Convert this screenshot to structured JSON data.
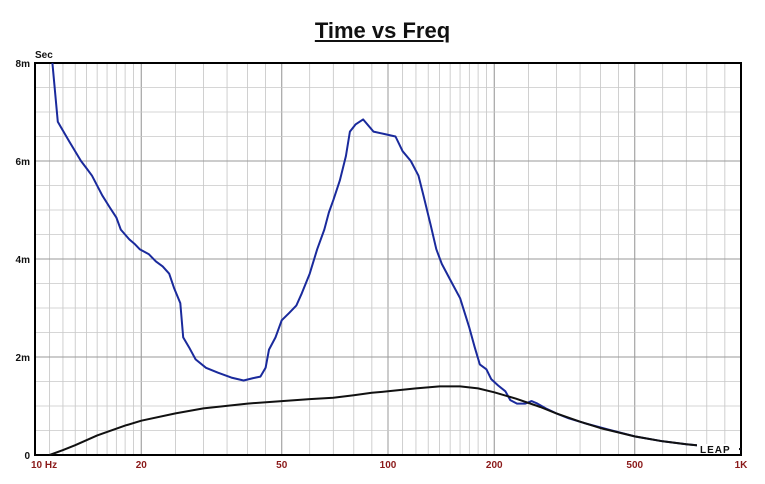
{
  "chart_data": {
    "type": "line",
    "title": "Time vs Freq",
    "y_unit_label": "Sec",
    "x_scale": "log",
    "xlim": [
      10,
      1000
    ],
    "ylim": [
      0,
      8
    ],
    "grid": true,
    "x_ticks": [
      {
        "value": 10,
        "label": "10 Hz"
      },
      {
        "value": 20,
        "label": "20"
      },
      {
        "value": 50,
        "label": "50"
      },
      {
        "value": 100,
        "label": "100"
      },
      {
        "value": 200,
        "label": "200"
      },
      {
        "value": 500,
        "label": "500"
      },
      {
        "value": 1000,
        "label": "1K"
      }
    ],
    "y_ticks": [
      {
        "value": 0,
        "label": "0"
      },
      {
        "value": 2,
        "label": "2m"
      },
      {
        "value": 4,
        "label": "4m"
      },
      {
        "value": 6,
        "label": "6m"
      },
      {
        "value": 8,
        "label": "8m"
      }
    ],
    "series": [
      {
        "color": "#1a2a9c",
        "points": [
          [
            11.2,
            8.0
          ],
          [
            11.6,
            6.8
          ],
          [
            12.5,
            6.4
          ],
          [
            13.5,
            6.0
          ],
          [
            14.0,
            5.85
          ],
          [
            14.5,
            5.7
          ],
          [
            15.5,
            5.3
          ],
          [
            16.3,
            5.05
          ],
          [
            17.0,
            4.85
          ],
          [
            17.5,
            4.6
          ],
          [
            18.5,
            4.4
          ],
          [
            19.2,
            4.3
          ],
          [
            19.8,
            4.2
          ],
          [
            21.0,
            4.1
          ],
          [
            22.0,
            3.95
          ],
          [
            23.0,
            3.85
          ],
          [
            24.0,
            3.7
          ],
          [
            24.8,
            3.4
          ],
          [
            25.8,
            3.1
          ],
          [
            26.3,
            2.4
          ],
          [
            27.3,
            2.2
          ],
          [
            28.5,
            1.95
          ],
          [
            30.5,
            1.78
          ],
          [
            33.0,
            1.68
          ],
          [
            36.0,
            1.58
          ],
          [
            39.0,
            1.52
          ],
          [
            41.5,
            1.57
          ],
          [
            43.5,
            1.6
          ],
          [
            45.0,
            1.78
          ],
          [
            46.0,
            2.15
          ],
          [
            48.0,
            2.4
          ],
          [
            50.0,
            2.75
          ],
          [
            52.5,
            2.9
          ],
          [
            55.0,
            3.05
          ],
          [
            57.0,
            3.3
          ],
          [
            60.0,
            3.7
          ],
          [
            63.0,
            4.2
          ],
          [
            66.0,
            4.6
          ],
          [
            68.0,
            4.95
          ],
          [
            70.0,
            5.2
          ],
          [
            73.0,
            5.6
          ],
          [
            76.0,
            6.1
          ],
          [
            78.0,
            6.6
          ],
          [
            81.0,
            6.75
          ],
          [
            85.0,
            6.85
          ],
          [
            91.0,
            6.6
          ],
          [
            98.0,
            6.55
          ],
          [
            105.0,
            6.5
          ],
          [
            110.0,
            6.2
          ],
          [
            116.0,
            6.0
          ],
          [
            122.0,
            5.7
          ],
          [
            126.0,
            5.3
          ],
          [
            132.0,
            4.7
          ],
          [
            137.0,
            4.2
          ],
          [
            142.0,
            3.9
          ],
          [
            152.0,
            3.5
          ],
          [
            160.0,
            3.2
          ],
          [
            170.0,
            2.6
          ],
          [
            176.0,
            2.2
          ],
          [
            182.0,
            1.85
          ],
          [
            190.0,
            1.75
          ],
          [
            196.0,
            1.55
          ],
          [
            205.0,
            1.42
          ],
          [
            215.0,
            1.3
          ],
          [
            222.0,
            1.12
          ],
          [
            232.0,
            1.05
          ],
          [
            245.0,
            1.05
          ],
          [
            255.0,
            1.1
          ],
          [
            265.0,
            1.05
          ],
          [
            280.0,
            0.95
          ],
          [
            300.0,
            0.85
          ],
          [
            325.0,
            0.75
          ],
          [
            360.0,
            0.65
          ],
          [
            420.0,
            0.52
          ],
          [
            500.0,
            0.38
          ],
          [
            600.0,
            0.28
          ],
          [
            700.0,
            0.22
          ],
          [
            800.0,
            0.18
          ],
          [
            900.0,
            0.14
          ],
          [
            1000.0,
            0.12
          ]
        ]
      },
      {
        "color": "#111111",
        "points": [
          [
            11.0,
            0.0
          ],
          [
            12.0,
            0.1
          ],
          [
            13.0,
            0.2
          ],
          [
            15.0,
            0.4
          ],
          [
            18.0,
            0.6
          ],
          [
            20.0,
            0.7
          ],
          [
            25.0,
            0.85
          ],
          [
            30.0,
            0.95
          ],
          [
            40.0,
            1.05
          ],
          [
            50.0,
            1.1
          ],
          [
            60.0,
            1.14
          ],
          [
            70.0,
            1.17
          ],
          [
            80.0,
            1.22
          ],
          [
            90.0,
            1.27
          ],
          [
            100.0,
            1.3
          ],
          [
            120.0,
            1.36
          ],
          [
            140.0,
            1.4
          ],
          [
            160.0,
            1.4
          ],
          [
            180.0,
            1.36
          ],
          [
            200.0,
            1.28
          ],
          [
            230.0,
            1.15
          ],
          [
            270.0,
            0.98
          ],
          [
            300.0,
            0.85
          ],
          [
            350.0,
            0.68
          ],
          [
            400.0,
            0.55
          ],
          [
            500.0,
            0.38
          ],
          [
            600.0,
            0.28
          ],
          [
            700.0,
            0.22
          ],
          [
            800.0,
            0.18
          ],
          [
            900.0,
            0.14
          ],
          [
            1000.0,
            0.12
          ]
        ]
      }
    ]
  },
  "watermark": "LEAP"
}
